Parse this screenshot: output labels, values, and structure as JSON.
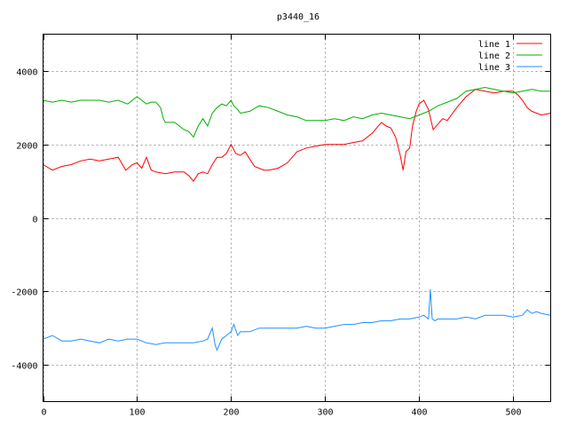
{
  "chart_data": {
    "type": "line",
    "title": "p3440_16",
    "xlabel": "",
    "ylabel": "",
    "xlim": [
      0,
      540
    ],
    "ylim": [
      -5000,
      5000
    ],
    "xticks": [
      0,
      100,
      200,
      300,
      400,
      500
    ],
    "yticks": [
      -4000,
      -2000,
      0,
      2000,
      4000
    ],
    "grid": true,
    "legend_position": "top-right",
    "series": [
      {
        "name": "line 1",
        "color": "#ff0000",
        "x": [
          0,
          10,
          20,
          30,
          40,
          50,
          60,
          70,
          80,
          88,
          95,
          100,
          105,
          110,
          115,
          120,
          130,
          140,
          150,
          155,
          160,
          165,
          170,
          175,
          180,
          185,
          190,
          195,
          200,
          205,
          210,
          215,
          220,
          225,
          230,
          235,
          240,
          250,
          260,
          270,
          280,
          290,
          300,
          310,
          320,
          330,
          340,
          350,
          360,
          365,
          370,
          375,
          380,
          383,
          386,
          390,
          393,
          397,
          400,
          405,
          410,
          415,
          420,
          425,
          430,
          440,
          450,
          460,
          470,
          480,
          490,
          500,
          505,
          510,
          515,
          520,
          525,
          530,
          540
        ],
        "values": [
          1450,
          1300,
          1400,
          1450,
          1550,
          1600,
          1550,
          1600,
          1650,
          1300,
          1450,
          1500,
          1350,
          1650,
          1300,
          1250,
          1200,
          1250,
          1250,
          1150,
          1000,
          1200,
          1250,
          1200,
          1450,
          1650,
          1650,
          1750,
          2000,
          1750,
          1700,
          1800,
          1600,
          1400,
          1350,
          1300,
          1300,
          1350,
          1500,
          1800,
          1900,
          1950,
          2000,
          2000,
          2000,
          2050,
          2100,
          2300,
          2600,
          2500,
          2450,
          2200,
          1700,
          1300,
          1800,
          1900,
          2500,
          2900,
          3100,
          3200,
          2950,
          2400,
          2550,
          2700,
          2650,
          3000,
          3300,
          3500,
          3450,
          3400,
          3450,
          3450,
          3350,
          3200,
          3000,
          2900,
          2850,
          2800,
          2850
        ]
      },
      {
        "name": "line 2",
        "color": "#00b000",
        "x": [
          0,
          10,
          20,
          30,
          40,
          50,
          60,
          70,
          80,
          90,
          100,
          105,
          110,
          115,
          120,
          125,
          128,
          130,
          140,
          150,
          155,
          160,
          165,
          170,
          175,
          180,
          185,
          190,
          195,
          200,
          203,
          207,
          210,
          220,
          230,
          240,
          250,
          260,
          270,
          280,
          290,
          300,
          310,
          320,
          330,
          340,
          350,
          360,
          370,
          380,
          390,
          400,
          410,
          420,
          430,
          440,
          450,
          460,
          470,
          480,
          490,
          500,
          510,
          520,
          530,
          540
        ],
        "values": [
          3200,
          3150,
          3200,
          3150,
          3200,
          3200,
          3200,
          3150,
          3200,
          3100,
          3300,
          3200,
          3100,
          3150,
          3150,
          3000,
          2700,
          2600,
          2600,
          2400,
          2350,
          2200,
          2500,
          2700,
          2500,
          2850,
          3000,
          3100,
          3050,
          3200,
          3050,
          2950,
          2850,
          2900,
          3050,
          3000,
          2900,
          2800,
          2750,
          2650,
          2650,
          2650,
          2700,
          2650,
          2750,
          2700,
          2800,
          2850,
          2800,
          2750,
          2700,
          2800,
          2900,
          3050,
          3150,
          3250,
          3450,
          3500,
          3550,
          3500,
          3450,
          3400,
          3450,
          3500,
          3450,
          3450
        ]
      },
      {
        "name": "line 3",
        "color": "#1e90ff",
        "x": [
          0,
          10,
          20,
          30,
          40,
          50,
          60,
          70,
          80,
          90,
          100,
          110,
          120,
          130,
          140,
          150,
          160,
          170,
          175,
          180,
          183,
          185,
          190,
          195,
          200,
          203,
          207,
          210,
          220,
          230,
          240,
          250,
          260,
          270,
          280,
          290,
          300,
          310,
          320,
          330,
          340,
          350,
          360,
          370,
          380,
          390,
          400,
          405,
          410,
          412,
          414,
          417,
          420,
          430,
          440,
          450,
          460,
          470,
          480,
          490,
          500,
          510,
          515,
          520,
          525,
          530,
          540
        ],
        "values": [
          -3300,
          -3200,
          -3350,
          -3350,
          -3300,
          -3350,
          -3400,
          -3300,
          -3350,
          -3300,
          -3300,
          -3400,
          -3450,
          -3400,
          -3400,
          -3400,
          -3400,
          -3350,
          -3300,
          -3000,
          -3450,
          -3600,
          -3300,
          -3200,
          -3100,
          -2900,
          -3200,
          -3100,
          -3100,
          -3000,
          -3000,
          -3000,
          -3000,
          -3000,
          -2950,
          -3000,
          -3000,
          -2950,
          -2900,
          -2900,
          -2850,
          -2850,
          -2800,
          -2800,
          -2750,
          -2750,
          -2700,
          -2650,
          -2750,
          -1950,
          -2750,
          -2800,
          -2750,
          -2750,
          -2750,
          -2700,
          -2750,
          -2650,
          -2650,
          -2650,
          -2700,
          -2650,
          -2500,
          -2600,
          -2550,
          -2600,
          -2650
        ]
      }
    ]
  }
}
